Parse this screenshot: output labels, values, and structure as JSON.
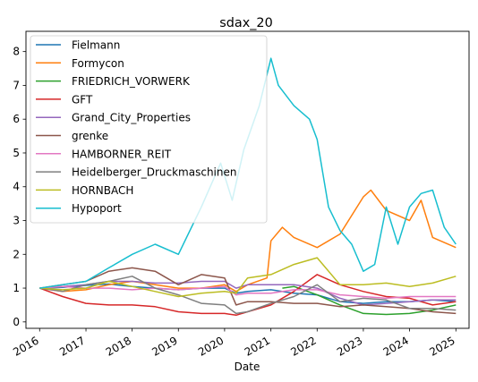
{
  "chart_data": {
    "type": "line",
    "title": "sdax_20",
    "xlabel": "Date",
    "ylabel": "",
    "xlim": [
      "2015-09-15",
      "2025-04-15"
    ],
    "ylim": [
      -0.19,
      8.6
    ],
    "x_ticks": [
      "2016",
      "2017",
      "2018",
      "2019",
      "2020",
      "2021",
      "2022",
      "2023",
      "2024",
      "2025"
    ],
    "y_ticks": [
      0,
      1,
      2,
      3,
      4,
      5,
      6,
      7,
      8
    ],
    "grid": false,
    "legend_position": "upper-left",
    "series": [
      {
        "name": "Fielmann",
        "color": "#1f77b4",
        "points": [
          [
            "2016-01-01",
            1.0
          ],
          [
            "2016-07-01",
            1.02
          ],
          [
            "2017-01-01",
            1.08
          ],
          [
            "2017-07-01",
            1.12
          ],
          [
            "2018-01-01",
            1.05
          ],
          [
            "2018-07-01",
            1.0
          ],
          [
            "2019-01-01",
            0.95
          ],
          [
            "2019-07-01",
            1.0
          ],
          [
            "2020-01-01",
            1.0
          ],
          [
            "2020-04-01",
            0.85
          ],
          [
            "2020-07-01",
            0.9
          ],
          [
            "2021-01-01",
            0.95
          ],
          [
            "2021-07-01",
            0.85
          ],
          [
            "2022-01-01",
            0.8
          ],
          [
            "2022-07-01",
            0.6
          ],
          [
            "2023-01-01",
            0.55
          ],
          [
            "2023-07-01",
            0.6
          ],
          [
            "2024-01-01",
            0.6
          ],
          [
            "2024-07-01",
            0.65
          ],
          [
            "2025-01-01",
            0.6
          ]
        ]
      },
      {
        "name": "Formycon",
        "color": "#ff7f0e",
        "points": [
          [
            "2016-01-01",
            1.0
          ],
          [
            "2016-07-01",
            0.9
          ],
          [
            "2017-01-01",
            0.95
          ],
          [
            "2017-07-01",
            1.1
          ],
          [
            "2018-01-01",
            1.2
          ],
          [
            "2018-07-01",
            1.1
          ],
          [
            "2019-01-01",
            1.0
          ],
          [
            "2019-07-01",
            1.0
          ],
          [
            "2020-01-01",
            1.1
          ],
          [
            "2020-04-01",
            0.9
          ],
          [
            "2020-07-01",
            1.1
          ],
          [
            "2020-12-01",
            1.3
          ],
          [
            "2021-01-01",
            2.4
          ],
          [
            "2021-04-01",
            2.8
          ],
          [
            "2021-07-01",
            2.5
          ],
          [
            "2022-01-01",
            2.2
          ],
          [
            "2022-07-01",
            2.6
          ],
          [
            "2023-01-01",
            3.7
          ],
          [
            "2023-03-01",
            3.9
          ],
          [
            "2023-07-01",
            3.3
          ],
          [
            "2024-01-01",
            3.0
          ],
          [
            "2024-04-01",
            3.6
          ],
          [
            "2024-07-01",
            2.5
          ],
          [
            "2025-01-01",
            2.2
          ]
        ]
      },
      {
        "name": "FRIEDRICH_VORWERK",
        "color": "#2ca02c",
        "points": [
          [
            "2021-04-01",
            1.0
          ],
          [
            "2021-07-01",
            1.05
          ],
          [
            "2022-01-01",
            0.8
          ],
          [
            "2022-07-01",
            0.5
          ],
          [
            "2023-01-01",
            0.25
          ],
          [
            "2023-07-01",
            0.22
          ],
          [
            "2024-01-01",
            0.25
          ],
          [
            "2024-07-01",
            0.35
          ],
          [
            "2025-01-01",
            0.5
          ]
        ]
      },
      {
        "name": "GFT",
        "color": "#d62728",
        "points": [
          [
            "2016-01-01",
            1.0
          ],
          [
            "2016-07-01",
            0.75
          ],
          [
            "2017-01-01",
            0.55
          ],
          [
            "2017-07-01",
            0.5
          ],
          [
            "2018-01-01",
            0.5
          ],
          [
            "2018-07-01",
            0.45
          ],
          [
            "2019-01-01",
            0.3
          ],
          [
            "2019-07-01",
            0.25
          ],
          [
            "2020-01-01",
            0.25
          ],
          [
            "2020-04-01",
            0.2
          ],
          [
            "2020-07-01",
            0.3
          ],
          [
            "2021-01-01",
            0.5
          ],
          [
            "2021-07-01",
            0.9
          ],
          [
            "2022-01-01",
            1.4
          ],
          [
            "2022-07-01",
            1.1
          ],
          [
            "2023-01-01",
            0.9
          ],
          [
            "2023-07-01",
            0.75
          ],
          [
            "2024-01-01",
            0.7
          ],
          [
            "2024-07-01",
            0.5
          ],
          [
            "2025-01-01",
            0.6
          ]
        ]
      },
      {
        "name": "Grand_City_Properties",
        "color": "#9467bd",
        "points": [
          [
            "2016-01-01",
            1.0
          ],
          [
            "2016-07-01",
            1.05
          ],
          [
            "2017-01-01",
            1.1
          ],
          [
            "2017-07-01",
            1.2
          ],
          [
            "2018-01-01",
            1.2
          ],
          [
            "2018-07-01",
            1.15
          ],
          [
            "2019-01-01",
            1.15
          ],
          [
            "2019-07-01",
            1.2
          ],
          [
            "2020-01-01",
            1.2
          ],
          [
            "2020-04-01",
            1.0
          ],
          [
            "2020-07-01",
            1.1
          ],
          [
            "2021-01-01",
            1.1
          ],
          [
            "2021-07-01",
            1.1
          ],
          [
            "2022-01-01",
            1.0
          ],
          [
            "2022-07-01",
            0.7
          ],
          [
            "2023-01-01",
            0.5
          ],
          [
            "2023-07-01",
            0.55
          ],
          [
            "2024-01-01",
            0.6
          ],
          [
            "2024-07-01",
            0.65
          ],
          [
            "2025-01-01",
            0.65
          ]
        ]
      },
      {
        "name": "grenke",
        "color": "#8c564b",
        "points": [
          [
            "2016-01-01",
            1.0
          ],
          [
            "2016-07-01",
            1.1
          ],
          [
            "2017-01-01",
            1.2
          ],
          [
            "2017-07-01",
            1.5
          ],
          [
            "2018-01-01",
            1.6
          ],
          [
            "2018-07-01",
            1.5
          ],
          [
            "2019-01-01",
            1.1
          ],
          [
            "2019-07-01",
            1.4
          ],
          [
            "2020-01-01",
            1.3
          ],
          [
            "2020-04-01",
            0.5
          ],
          [
            "2020-07-01",
            0.6
          ],
          [
            "2021-01-01",
            0.6
          ],
          [
            "2021-07-01",
            0.55
          ],
          [
            "2022-01-01",
            0.55
          ],
          [
            "2022-07-01",
            0.45
          ],
          [
            "2023-01-01",
            0.5
          ],
          [
            "2023-07-01",
            0.45
          ],
          [
            "2024-01-01",
            0.4
          ],
          [
            "2024-07-01",
            0.3
          ],
          [
            "2025-01-01",
            0.25
          ]
        ]
      },
      {
        "name": "HAMBORNER_REIT",
        "color": "#e377c2",
        "points": [
          [
            "2016-01-01",
            1.0
          ],
          [
            "2016-07-01",
            1.05
          ],
          [
            "2017-01-01",
            1.0
          ],
          [
            "2017-07-01",
            1.0
          ],
          [
            "2018-01-01",
            0.95
          ],
          [
            "2018-07-01",
            1.0
          ],
          [
            "2019-01-01",
            0.95
          ],
          [
            "2019-07-01",
            1.0
          ],
          [
            "2020-01-01",
            1.05
          ],
          [
            "2020-04-01",
            0.8
          ],
          [
            "2020-07-01",
            0.85
          ],
          [
            "2021-01-01",
            0.85
          ],
          [
            "2021-07-01",
            0.95
          ],
          [
            "2022-01-01",
            0.95
          ],
          [
            "2022-07-01",
            0.8
          ],
          [
            "2023-01-01",
            0.75
          ],
          [
            "2023-07-01",
            0.7
          ],
          [
            "2024-01-01",
            0.75
          ],
          [
            "2024-07-01",
            0.75
          ],
          [
            "2025-01-01",
            0.75
          ]
        ]
      },
      {
        "name": "Heidelberger_Druckmaschinen",
        "color": "#7f7f7f",
        "points": [
          [
            "2016-01-01",
            1.0
          ],
          [
            "2016-07-01",
            0.9
          ],
          [
            "2017-01-01",
            1.1
          ],
          [
            "2017-07-01",
            1.2
          ],
          [
            "2018-01-01",
            1.35
          ],
          [
            "2018-07-01",
            1.0
          ],
          [
            "2019-01-01",
            0.8
          ],
          [
            "2019-07-01",
            0.55
          ],
          [
            "2020-01-01",
            0.5
          ],
          [
            "2020-04-01",
            0.25
          ],
          [
            "2020-07-01",
            0.3
          ],
          [
            "2021-01-01",
            0.55
          ],
          [
            "2021-07-01",
            0.75
          ],
          [
            "2022-01-01",
            1.1
          ],
          [
            "2022-07-01",
            0.6
          ],
          [
            "2023-01-01",
            0.7
          ],
          [
            "2023-07-01",
            0.65
          ],
          [
            "2024-01-01",
            0.4
          ],
          [
            "2024-07-01",
            0.4
          ],
          [
            "2025-01-01",
            0.35
          ]
        ]
      },
      {
        "name": "HORNBACH",
        "color": "#bcbd22",
        "points": [
          [
            "2016-01-01",
            1.0
          ],
          [
            "2016-07-01",
            0.95
          ],
          [
            "2017-01-01",
            1.0
          ],
          [
            "2017-07-01",
            1.2
          ],
          [
            "2018-01-01",
            1.05
          ],
          [
            "2018-07-01",
            0.9
          ],
          [
            "2019-01-01",
            0.75
          ],
          [
            "2019-07-01",
            0.85
          ],
          [
            "2020-01-01",
            0.9
          ],
          [
            "2020-04-01",
            0.85
          ],
          [
            "2020-07-01",
            1.3
          ],
          [
            "2021-01-01",
            1.4
          ],
          [
            "2021-07-01",
            1.7
          ],
          [
            "2022-01-01",
            1.9
          ],
          [
            "2022-07-01",
            1.1
          ],
          [
            "2023-01-01",
            1.1
          ],
          [
            "2023-07-01",
            1.15
          ],
          [
            "2024-01-01",
            1.05
          ],
          [
            "2024-07-01",
            1.15
          ],
          [
            "2025-01-01",
            1.35
          ]
        ]
      },
      {
        "name": "Hypoport",
        "color": "#17becf",
        "points": [
          [
            "2016-01-01",
            1.0
          ],
          [
            "2016-07-01",
            1.1
          ],
          [
            "2017-01-01",
            1.2
          ],
          [
            "2017-07-01",
            1.6
          ],
          [
            "2018-01-01",
            2.0
          ],
          [
            "2018-07-01",
            2.3
          ],
          [
            "2019-01-01",
            2.0
          ],
          [
            "2019-07-01",
            3.4
          ],
          [
            "2019-12-01",
            4.7
          ],
          [
            "2020-03-01",
            3.6
          ],
          [
            "2020-06-01",
            5.1
          ],
          [
            "2020-10-01",
            6.4
          ],
          [
            "2021-01-01",
            7.8
          ],
          [
            "2021-03-01",
            7.0
          ],
          [
            "2021-07-01",
            6.4
          ],
          [
            "2021-11-01",
            6.0
          ],
          [
            "2022-01-01",
            5.4
          ],
          [
            "2022-04-01",
            3.4
          ],
          [
            "2022-07-01",
            2.7
          ],
          [
            "2022-10-01",
            2.3
          ],
          [
            "2023-01-01",
            1.5
          ],
          [
            "2023-04-01",
            1.7
          ],
          [
            "2023-07-01",
            3.4
          ],
          [
            "2023-10-01",
            2.3
          ],
          [
            "2024-01-01",
            3.4
          ],
          [
            "2024-04-01",
            3.8
          ],
          [
            "2024-07-01",
            3.9
          ],
          [
            "2024-10-01",
            2.8
          ],
          [
            "2025-01-01",
            2.3
          ]
        ]
      }
    ]
  }
}
